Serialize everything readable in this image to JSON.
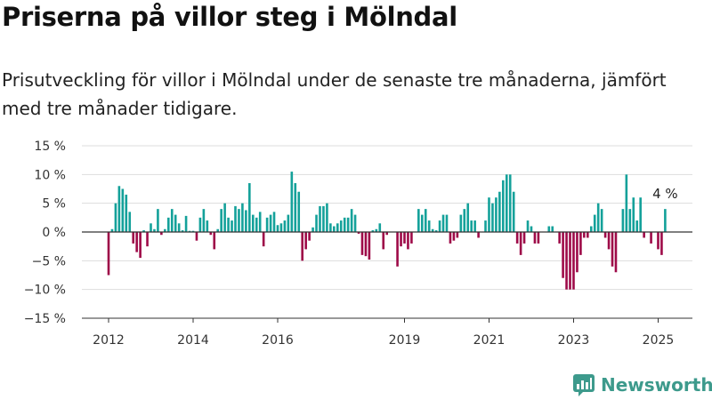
{
  "title": "Priserna på villor steg i Mölndal",
  "subtitle": "Prisutveckling för villor i Mölndal under de senaste tre månaderna, jämfört med tre månader tidigare.",
  "brand": {
    "name": "Newsworthy",
    "color": "#3d9a8c"
  },
  "colors": {
    "positive": "#14a19a",
    "negative": "#9e0a48",
    "zero_line": "#333333",
    "grid": "#dddddd",
    "text": "#333333"
  },
  "chart_data": {
    "type": "bar",
    "xlabel": "",
    "ylabel": "",
    "ylim": [
      -15,
      15
    ],
    "y_ticks": [
      15,
      10,
      5,
      0,
      -5,
      -10,
      -15
    ],
    "y_tick_labels": [
      "15 %",
      "10 %",
      "5 %",
      "0 %",
      "−5 %",
      "−10 %",
      "−15 %"
    ],
    "x_ticks": [
      2012,
      2014,
      2016,
      2019,
      2021,
      2023,
      2025
    ],
    "x_tick_labels": [
      "2012",
      "2014",
      "2016",
      "2019",
      "2021",
      "2023",
      "2025"
    ],
    "x_start": 2012.0,
    "step": 0.08333,
    "grid": true,
    "last_label": "4 %",
    "values": [
      -7.5,
      0.5,
      5,
      8,
      7.5,
      6.5,
      3.5,
      -2,
      -3.5,
      -4.5,
      0.3,
      -2.5,
      1.5,
      0.5,
      4,
      -0.5,
      0.5,
      2.5,
      4,
      3,
      1.5,
      0.3,
      2.8,
      0.2,
      0.2,
      -1.5,
      2.5,
      4,
      2,
      -0.5,
      -3,
      0.5,
      4,
      5,
      2.5,
      2,
      4.5,
      4,
      5,
      3.8,
      8.5,
      3,
      2.5,
      3.5,
      -2.5,
      2.5,
      3,
      3.5,
      1.2,
      1.5,
      2,
      3,
      10.5,
      8.5,
      7,
      -5,
      -3,
      -1.5,
      0.8,
      3,
      4.5,
      4.5,
      5,
      1.5,
      1,
      1.5,
      2,
      2.5,
      2.5,
      4,
      3,
      -0.3,
      -4,
      -4.2,
      -4.8,
      0.3,
      0.5,
      1.5,
      -3,
      -0.5,
      0,
      0,
      -6,
      -2.5,
      -2,
      -3,
      -2,
      0,
      4,
      3,
      4,
      2,
      0.5,
      0.3,
      2,
      3,
      3,
      -2,
      -1.5,
      -1,
      3,
      4,
      5,
      2,
      2,
      -1,
      0,
      2,
      6,
      5,
      6,
      7,
      9,
      10,
      10,
      7,
      -2,
      -4,
      -2,
      2,
      1,
      -2,
      -2,
      0,
      0,
      1,
      1,
      0,
      -2,
      -8,
      -10,
      -10,
      -10,
      -7,
      -4,
      -1,
      -1,
      1,
      3,
      5,
      4,
      -1,
      -3,
      -6,
      -7,
      0,
      4,
      10,
      4,
      6,
      2,
      6,
      -1,
      0,
      -2,
      0,
      -3,
      -4,
      4
    ]
  }
}
